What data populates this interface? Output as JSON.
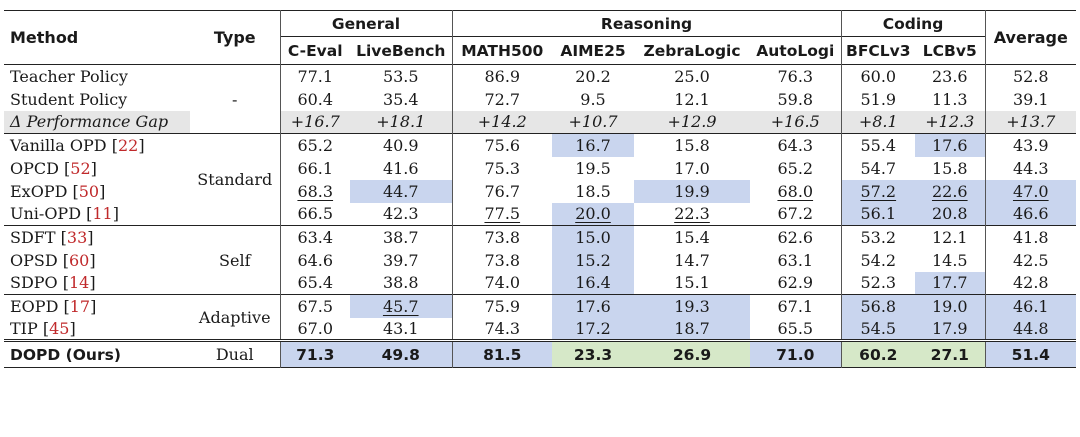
{
  "header": {
    "method": "Method",
    "type": "Type",
    "average": "Average",
    "groups": [
      "General",
      "Reasoning",
      "Coding"
    ],
    "columns": [
      "C-Eval",
      "LiveBench",
      "MATH500",
      "AIME25",
      "ZebraLogic",
      "AutoLogi",
      "BFCLv3",
      "LCBv5"
    ]
  },
  "baselines": [
    {
      "method": "Teacher Policy",
      "values": [
        "77.1",
        "53.5",
        "86.9",
        "20.2",
        "25.0",
        "76.3",
        "60.0",
        "23.6",
        "52.8"
      ]
    },
    {
      "method": "Student Policy",
      "values": [
        "60.4",
        "35.4",
        "72.7",
        "9.5",
        "12.1",
        "59.8",
        "51.9",
        "11.3",
        "39.1"
      ]
    },
    {
      "method": "Δ Performance Gap",
      "values": [
        "+16.7",
        "+18.1",
        "+14.2",
        "+10.7",
        "+12.9",
        "+16.5",
        "+8.1",
        "+12.3",
        "+13.7"
      ]
    }
  ],
  "baseline_type": "-",
  "groups": [
    {
      "type": "Standard",
      "rows": [
        {
          "name": "Vanilla OPD",
          "ref": "22",
          "values": [
            "65.2",
            "40.9",
            "75.6",
            "16.7",
            "15.8",
            "64.3",
            "55.4",
            "17.6",
            "43.9"
          ]
        },
        {
          "name": "OPCD",
          "ref": "52",
          "values": [
            "66.1",
            "41.6",
            "75.3",
            "19.5",
            "17.0",
            "65.2",
            "54.7",
            "15.8",
            "44.3"
          ]
        },
        {
          "name": "ExOPD",
          "ref": "50",
          "values": [
            "68.3",
            "44.7",
            "76.7",
            "18.5",
            "19.9",
            "68.0",
            "57.2",
            "22.6",
            "47.0"
          ]
        },
        {
          "name": "Uni-OPD",
          "ref": "11",
          "values": [
            "66.5",
            "42.3",
            "77.5",
            "20.0",
            "22.3",
            "67.2",
            "56.1",
            "20.8",
            "46.6"
          ]
        }
      ]
    },
    {
      "type": "Self",
      "rows": [
        {
          "name": "SDFT",
          "ref": "33",
          "values": [
            "63.4",
            "38.7",
            "73.8",
            "15.0",
            "15.4",
            "62.6",
            "53.2",
            "12.1",
            "41.8"
          ]
        },
        {
          "name": "OPSD",
          "ref": "60",
          "values": [
            "64.6",
            "39.7",
            "73.8",
            "15.2",
            "14.7",
            "63.1",
            "54.2",
            "14.5",
            "42.5"
          ]
        },
        {
          "name": "SDPO",
          "ref": "14",
          "values": [
            "65.4",
            "38.8",
            "74.0",
            "16.4",
            "15.1",
            "62.9",
            "52.3",
            "17.7",
            "42.8"
          ]
        }
      ]
    },
    {
      "type": "Adaptive",
      "rows": [
        {
          "name": "EOPD",
          "ref": "17",
          "values": [
            "67.5",
            "45.7",
            "75.9",
            "17.6",
            "19.3",
            "67.1",
            "56.8",
            "19.0",
            "46.1"
          ]
        },
        {
          "name": "TIP",
          "ref": "45",
          "values": [
            "67.0",
            "43.1",
            "74.3",
            "17.2",
            "18.7",
            "65.5",
            "54.5",
            "17.9",
            "44.8"
          ]
        }
      ]
    }
  ],
  "ours": {
    "method": "DOPD (Ours)",
    "type": "Dual",
    "values": [
      "71.3",
      "49.8",
      "81.5",
      "23.3",
      "26.9",
      "71.0",
      "60.2",
      "27.1",
      "51.4"
    ]
  },
  "colors": {
    "highlight_blue": "#c9d5ee",
    "highlight_green": "#d6e8c8",
    "gap_row_gray": "#e6e6e6",
    "reference_red": "#c0292b"
  }
}
